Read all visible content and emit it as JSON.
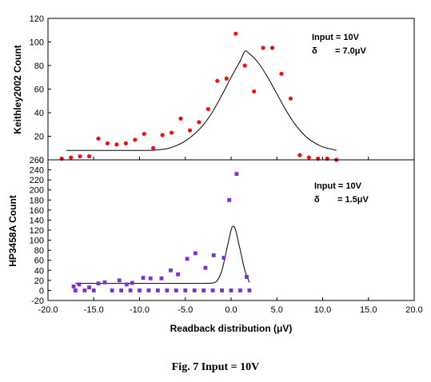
{
  "caption": "Fig. 7  Input = 10V",
  "chart_data": [
    {
      "type": "scatter",
      "ylabel": "Keithley2002 Count",
      "ylim": [
        0,
        120
      ],
      "yticks": [
        "0",
        "20",
        "40",
        "60",
        "80",
        "100",
        "120"
      ],
      "annotation": {
        "line1": "Input = 10V",
        "delta_symbol": "δ",
        "delta_value": "= 7.0μV"
      },
      "colors": {
        "points": "#ee1111",
        "fit": "#000000"
      },
      "series": [
        {
          "kind": "points",
          "marker": "circle",
          "x": [
            -18.5,
            -17.5,
            -16.5,
            -15.5,
            -14.5,
            -13.5,
            -12.5,
            -11.5,
            -10.5,
            -9.5,
            -8.5,
            -7.5,
            -6.5,
            -5.5,
            -4.5,
            -3.5,
            -2.5,
            -1.5,
            -0.5,
            0.5,
            1.5,
            2.5,
            3.5,
            4.5,
            5.5,
            6.5,
            7.5,
            8.5,
            9.5,
            10.5,
            11.5
          ],
          "y": [
            1,
            2,
            3,
            3,
            18,
            14,
            13,
            14,
            17,
            22,
            10,
            21,
            23,
            35,
            25,
            32,
            43,
            67,
            69,
            107,
            80,
            58,
            95,
            95,
            73,
            52,
            4,
            2,
            1,
            1,
            0
          ]
        },
        {
          "kind": "fit",
          "marker": "line",
          "x": [
            -18.0,
            -17.0,
            -16.0,
            -15.0,
            -14.0,
            -13.0,
            -12.0,
            -11.0,
            -10.0,
            -9.0,
            -8.0,
            -7.0,
            -6.0,
            -5.0,
            -4.0,
            -3.0,
            -2.0,
            -1.0,
            0.0,
            1.0,
            1.5,
            2.0,
            3.0,
            4.0,
            5.0,
            6.0,
            7.0,
            8.0,
            9.0,
            10.0,
            11.0,
            11.5
          ],
          "y": [
            8,
            8,
            8,
            8,
            8,
            8,
            8,
            8,
            8,
            8,
            8.5,
            9.5,
            12,
            16,
            22,
            30,
            41,
            55,
            70,
            84,
            92,
            90,
            82,
            70,
            56,
            42,
            30,
            21,
            15,
            11,
            9,
            8
          ]
        }
      ]
    },
    {
      "type": "scatter",
      "ylabel": "HP3458A Count",
      "xlabel": "Readback distribution (μV)",
      "xlim": [
        -20,
        20
      ],
      "xticks": [
        "-20.0",
        "-15.0",
        "-10.0",
        "-5.0",
        "0.0",
        "5.0",
        "10.0",
        "15.0",
        "20.0"
      ],
      "ylim": [
        -20,
        260
      ],
      "yticks": [
        "-20",
        "0",
        "20",
        "40",
        "60",
        "80",
        "100",
        "120",
        "140",
        "160",
        "180",
        "200",
        "220",
        "240",
        "260"
      ],
      "annotation": {
        "line1": "Input = 10V",
        "delta_symbol": "δ",
        "delta_value": "= 1.5μV"
      },
      "colors": {
        "points": "#7b2fd8",
        "fit": "#000000"
      },
      "series": [
        {
          "kind": "points",
          "marker": "square",
          "x": [
            -17.2,
            -16.6,
            -16.0,
            -15.5,
            -14.5,
            -13.8,
            -12.2,
            -11.4,
            -10.8,
            -9.6,
            -8.8,
            -7.6,
            -6.6,
            -5.8,
            -4.8,
            -3.9,
            -2.8,
            -1.9,
            -0.8,
            -0.2,
            0.6,
            1.7
          ],
          "y": [
            8,
            12,
            0,
            6,
            14,
            16,
            20,
            12,
            15,
            25,
            24,
            24,
            40,
            32,
            63,
            74,
            45,
            70,
            65,
            180,
            232,
            27
          ]
        },
        {
          "kind": "points",
          "marker": "square",
          "x": [
            -17.0,
            -15.0,
            -13.0,
            -12.0,
            -11.0,
            -10.0,
            -9.0,
            -8.0,
            -7.0,
            -6.0,
            -5.0,
            -4.0,
            -3.0,
            -2.0,
            -1.0,
            0.0,
            1.0,
            2.0
          ],
          "y": [
            0,
            0,
            0,
            0,
            0,
            0,
            0,
            0,
            0,
            0,
            0,
            0,
            0,
            0,
            0,
            0,
            0,
            0
          ]
        },
        {
          "kind": "fit",
          "marker": "line",
          "x": [
            -17.0,
            -15.0,
            -13.0,
            -11.0,
            -9.0,
            -7.0,
            -5.0,
            -3.0,
            -2.0,
            -1.5,
            -1.0,
            -0.5,
            0.0,
            0.25,
            0.5,
            1.0,
            1.5,
            2.0
          ],
          "y": [
            14,
            14,
            14,
            14,
            14,
            14,
            14,
            14,
            15,
            20,
            40,
            80,
            120,
            128,
            120,
            80,
            40,
            16
          ]
        }
      ]
    }
  ]
}
